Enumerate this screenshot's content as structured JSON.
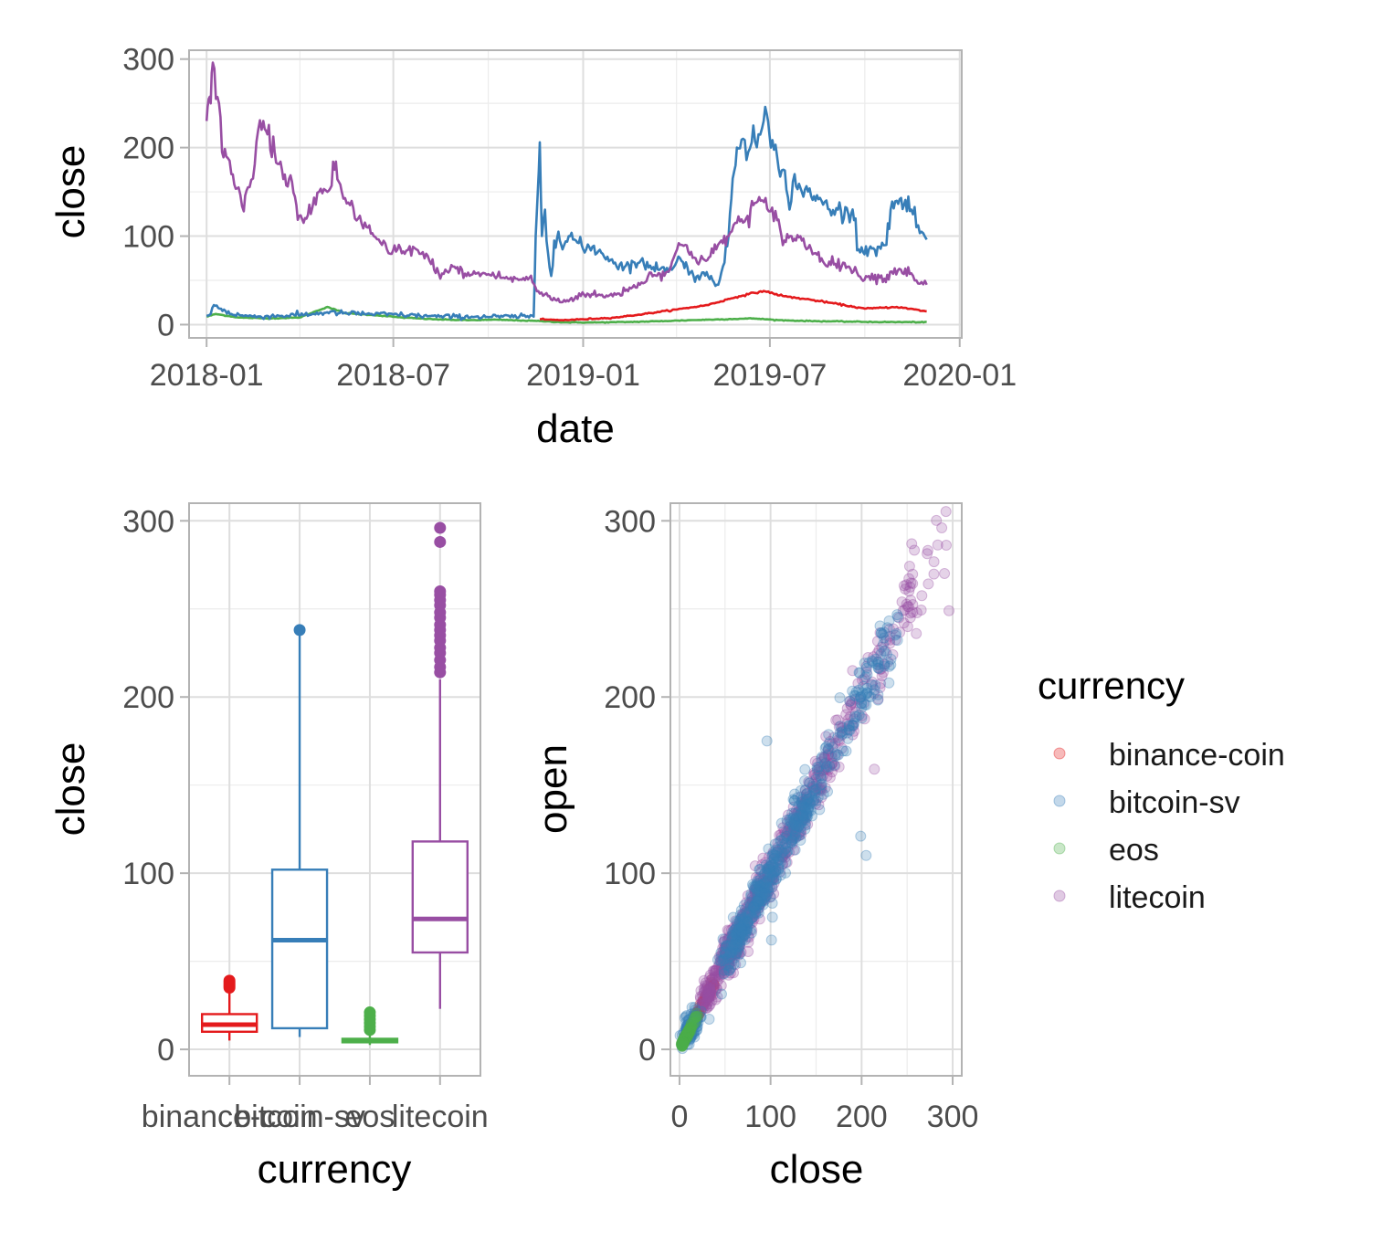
{
  "colors": {
    "binance-coin": "#e41a1c",
    "bitcoin-sv": "#377eb8",
    "eos": "#4daf4a",
    "litecoin": "#984ea3"
  },
  "legend": {
    "title": "currency",
    "items": [
      "binance-coin",
      "bitcoin-sv",
      "eos",
      "litecoin"
    ]
  },
  "chart_data": [
    {
      "type": "line",
      "xlabel": "date",
      "ylabel": "close",
      "x_ticks": [
        "2018-01",
        "2018-07",
        "2019-01",
        "2019-07",
        "2020-01"
      ],
      "y_ticks": [
        0,
        100,
        200,
        300
      ],
      "xlim": [
        "2017-12-15",
        "2020-01-03"
      ],
      "ylim": [
        -15,
        310
      ],
      "grid": true,
      "series": [
        {
          "name": "litecoin",
          "points": [
            [
              "2018-01-01",
              230
            ],
            [
              "2018-01-03",
              255
            ],
            [
              "2018-01-05",
              250
            ],
            [
              "2018-01-07",
              296
            ],
            [
              "2018-01-10",
              255
            ],
            [
              "2018-01-13",
              250
            ],
            [
              "2018-01-16",
              195
            ],
            [
              "2018-01-20",
              190
            ],
            [
              "2018-01-25",
              170
            ],
            [
              "2018-02-01",
              155
            ],
            [
              "2018-02-06",
              128
            ],
            [
              "2018-02-10",
              155
            ],
            [
              "2018-02-15",
              165
            ],
            [
              "2018-02-20",
              220
            ],
            [
              "2018-02-25",
              230
            ],
            [
              "2018-03-01",
              215
            ],
            [
              "2018-03-08",
              195
            ],
            [
              "2018-03-15",
              175
            ],
            [
              "2018-03-22",
              165
            ],
            [
              "2018-03-29",
              135
            ],
            [
              "2018-04-05",
              115
            ],
            [
              "2018-04-12",
              125
            ],
            [
              "2018-04-20",
              150
            ],
            [
              "2018-04-28",
              150
            ],
            [
              "2018-05-05",
              175
            ],
            [
              "2018-05-12",
              150
            ],
            [
              "2018-05-20",
              135
            ],
            [
              "2018-05-28",
              120
            ],
            [
              "2018-06-05",
              110
            ],
            [
              "2018-06-12",
              100
            ],
            [
              "2018-06-20",
              90
            ],
            [
              "2018-06-28",
              80
            ],
            [
              "2018-07-05",
              85
            ],
            [
              "2018-07-12",
              80
            ],
            [
              "2018-07-20",
              88
            ],
            [
              "2018-07-28",
              80
            ],
            [
              "2018-08-05",
              72
            ],
            [
              "2018-08-14",
              58
            ],
            [
              "2018-08-22",
              60
            ],
            [
              "2018-09-01",
              65
            ],
            [
              "2018-09-10",
              55
            ],
            [
              "2018-09-20",
              58
            ],
            [
              "2018-10-01",
              57
            ],
            [
              "2018-10-10",
              55
            ],
            [
              "2018-10-20",
              52
            ],
            [
              "2018-11-01",
              51
            ],
            [
              "2018-11-10",
              53
            ],
            [
              "2018-11-20",
              35
            ],
            [
              "2018-11-28",
              32
            ],
            [
              "2018-12-05",
              28
            ],
            [
              "2018-12-15",
              26
            ],
            [
              "2018-12-25",
              32
            ],
            [
              "2019-01-05",
              35
            ],
            [
              "2019-01-15",
              33
            ],
            [
              "2019-01-25",
              32
            ],
            [
              "2019-02-05",
              35
            ],
            [
              "2019-02-15",
              42
            ],
            [
              "2019-02-25",
              45
            ],
            [
              "2019-03-05",
              55
            ],
            [
              "2019-03-15",
              58
            ],
            [
              "2019-03-25",
              60
            ],
            [
              "2019-04-02",
              85
            ],
            [
              "2019-04-10",
              90
            ],
            [
              "2019-04-20",
              75
            ],
            [
              "2019-04-30",
              72
            ],
            [
              "2019-05-10",
              85
            ],
            [
              "2019-05-15",
              95
            ],
            [
              "2019-05-22",
              100
            ],
            [
              "2019-05-30",
              115
            ],
            [
              "2019-06-08",
              120
            ],
            [
              "2019-06-15",
              135
            ],
            [
              "2019-06-22",
              140
            ],
            [
              "2019-06-30",
              128
            ],
            [
              "2019-07-08",
              118
            ],
            [
              "2019-07-15",
              95
            ],
            [
              "2019-07-22",
              100
            ],
            [
              "2019-08-01",
              95
            ],
            [
              "2019-08-10",
              85
            ],
            [
              "2019-08-20",
              75
            ],
            [
              "2019-09-01",
              68
            ],
            [
              "2019-09-10",
              70
            ],
            [
              "2019-09-20",
              60
            ],
            [
              "2019-09-25",
              55
            ],
            [
              "2019-10-05",
              55
            ],
            [
              "2019-10-20",
              52
            ],
            [
              "2019-10-27",
              60
            ],
            [
              "2019-11-05",
              62
            ],
            [
              "2019-11-15",
              58
            ],
            [
              "2019-11-20",
              50
            ],
            [
              "2019-11-25",
              48
            ],
            [
              "2019-11-30",
              45
            ]
          ]
        },
        {
          "name": "bitcoin-sv",
          "points": [
            [
              "2018-01-01",
              10
            ],
            [
              "2018-01-05",
              12
            ],
            [
              "2018-01-08",
              22
            ],
            [
              "2018-01-15",
              18
            ],
            [
              "2018-01-25",
              12
            ],
            [
              "2018-02-15",
              9
            ],
            [
              "2018-03-15",
              10
            ],
            [
              "2018-04-15",
              12
            ],
            [
              "2018-04-28",
              14
            ],
            [
              "2018-05-10",
              13
            ],
            [
              "2018-06-10",
              12
            ],
            [
              "2018-07-10",
              11
            ],
            [
              "2018-08-15",
              9
            ],
            [
              "2018-09-15",
              9
            ],
            [
              "2018-10-15",
              9
            ],
            [
              "2018-11-14",
              9
            ],
            [
              "2018-11-16",
              100
            ],
            [
              "2018-11-18",
              150
            ],
            [
              "2018-11-20",
              206
            ],
            [
              "2018-11-22",
              100
            ],
            [
              "2018-11-25",
              130
            ],
            [
              "2018-11-28",
              80
            ],
            [
              "2018-12-01",
              55
            ],
            [
              "2018-12-04",
              95
            ],
            [
              "2018-12-08",
              105
            ],
            [
              "2018-12-12",
              85
            ],
            [
              "2018-12-18",
              100
            ],
            [
              "2018-12-25",
              95
            ],
            [
              "2019-01-01",
              85
            ],
            [
              "2019-01-10",
              88
            ],
            [
              "2019-01-20",
              80
            ],
            [
              "2019-02-01",
              70
            ],
            [
              "2019-02-10",
              65
            ],
            [
              "2019-02-20",
              70
            ],
            [
              "2019-03-01",
              68
            ],
            [
              "2019-03-10",
              65
            ],
            [
              "2019-03-20",
              65
            ],
            [
              "2019-03-28",
              62
            ],
            [
              "2019-04-05",
              75
            ],
            [
              "2019-04-12",
              65
            ],
            [
              "2019-04-18",
              55
            ],
            [
              "2019-04-25",
              55
            ],
            [
              "2019-05-05",
              55
            ],
            [
              "2019-05-12",
              45
            ],
            [
              "2019-05-18",
              70
            ],
            [
              "2019-05-22",
              100
            ],
            [
              "2019-05-26",
              165
            ],
            [
              "2019-05-30",
              200
            ],
            [
              "2019-06-05",
              210
            ],
            [
              "2019-06-10",
              195
            ],
            [
              "2019-06-15",
              225
            ],
            [
              "2019-06-20",
              215
            ],
            [
              "2019-06-25",
              230
            ],
            [
              "2019-06-28",
              238
            ],
            [
              "2019-07-02",
              200
            ],
            [
              "2019-07-08",
              190
            ],
            [
              "2019-07-14",
              175
            ],
            [
              "2019-07-20",
              130
            ],
            [
              "2019-07-25",
              170
            ],
            [
              "2019-08-01",
              150
            ],
            [
              "2019-08-10",
              145
            ],
            [
              "2019-08-20",
              140
            ],
            [
              "2019-08-28",
              130
            ],
            [
              "2019-09-05",
              130
            ],
            [
              "2019-09-15",
              125
            ],
            [
              "2019-09-22",
              120
            ],
            [
              "2019-09-25",
              85
            ],
            [
              "2019-10-05",
              85
            ],
            [
              "2019-10-15",
              88
            ],
            [
              "2019-10-22",
              90
            ],
            [
              "2019-10-26",
              130
            ],
            [
              "2019-11-01",
              140
            ],
            [
              "2019-11-08",
              135
            ],
            [
              "2019-11-15",
              130
            ],
            [
              "2019-11-20",
              110
            ],
            [
              "2019-11-25",
              105
            ],
            [
              "2019-11-30",
              96
            ]
          ]
        },
        {
          "name": "binance-coin",
          "points": [
            [
              "2018-11-20",
              6
            ],
            [
              "2018-12-10",
              5
            ],
            [
              "2019-01-01",
              6
            ],
            [
              "2019-02-01",
              8
            ],
            [
              "2019-03-01",
              12
            ],
            [
              "2019-04-01",
              17
            ],
            [
              "2019-05-01",
              22
            ],
            [
              "2019-06-01",
              32
            ],
            [
              "2019-06-25",
              38
            ],
            [
              "2019-07-15",
              32
            ],
            [
              "2019-08-10",
              28
            ],
            [
              "2019-09-01",
              24
            ],
            [
              "2019-10-01",
              18
            ],
            [
              "2019-11-01",
              20
            ],
            [
              "2019-11-30",
              15
            ]
          ]
        },
        {
          "name": "eos",
          "points": [
            [
              "2018-01-01",
              9
            ],
            [
              "2018-01-10",
              12
            ],
            [
              "2018-02-01",
              8
            ],
            [
              "2018-03-01",
              7
            ],
            [
              "2018-04-01",
              8
            ],
            [
              "2018-04-28",
              20
            ],
            [
              "2018-05-15",
              13
            ],
            [
              "2018-06-10",
              11
            ],
            [
              "2018-07-10",
              8
            ],
            [
              "2018-08-10",
              6
            ],
            [
              "2018-09-10",
              5
            ],
            [
              "2018-10-10",
              5.5
            ],
            [
              "2018-11-20",
              4
            ],
            [
              "2018-12-15",
              2.5
            ],
            [
              "2019-01-15",
              2.5
            ],
            [
              "2019-02-15",
              3
            ],
            [
              "2019-03-15",
              3.8
            ],
            [
              "2019-04-15",
              5
            ],
            [
              "2019-05-15",
              6
            ],
            [
              "2019-06-15",
              7
            ],
            [
              "2019-07-10",
              5
            ],
            [
              "2019-08-10",
              4
            ],
            [
              "2019-09-10",
              3.5
            ],
            [
              "2019-10-10",
              3
            ],
            [
              "2019-11-30",
              2.8
            ]
          ]
        }
      ]
    },
    {
      "type": "box",
      "xlabel": "currency",
      "ylabel": "close",
      "categories": [
        "binance-coin",
        "bitcoin-sv",
        "eos",
        "litecoin"
      ],
      "y_ticks": [
        0,
        100,
        200,
        300
      ],
      "ylim": [
        -15,
        310
      ],
      "grid": true,
      "boxes": [
        {
          "name": "binance-coin",
          "min": 5,
          "q1": 10,
          "median": 14,
          "q3": 20,
          "max": 33,
          "outliers": [
            35,
            36,
            37,
            38,
            39
          ]
        },
        {
          "name": "bitcoin-sv",
          "min": 7,
          "q1": 12,
          "median": 62,
          "q3": 102,
          "max": 236,
          "outliers": [
            238
          ]
        },
        {
          "name": "eos",
          "min": 2.5,
          "q1": 4,
          "median": 5,
          "q3": 6,
          "max": 9,
          "outliers": [
            11,
            13,
            15,
            17,
            19,
            21
          ]
        },
        {
          "name": "litecoin",
          "min": 23,
          "q1": 55,
          "median": 74,
          "q3": 118,
          "max": 210,
          "outliers": [
            214,
            217,
            221,
            225,
            228,
            232,
            235,
            238,
            241,
            245,
            248,
            252,
            255,
            258,
            260,
            288,
            296
          ]
        }
      ]
    },
    {
      "type": "scatter",
      "xlabel": "close",
      "ylabel": "open",
      "x_ticks": [
        0,
        100,
        200,
        300
      ],
      "y_ticks": [
        0,
        100,
        200,
        300
      ],
      "xlim": [
        -10,
        310
      ],
      "ylim": [
        -15,
        310
      ],
      "grid": true,
      "point_alpha": 0.25
    }
  ]
}
